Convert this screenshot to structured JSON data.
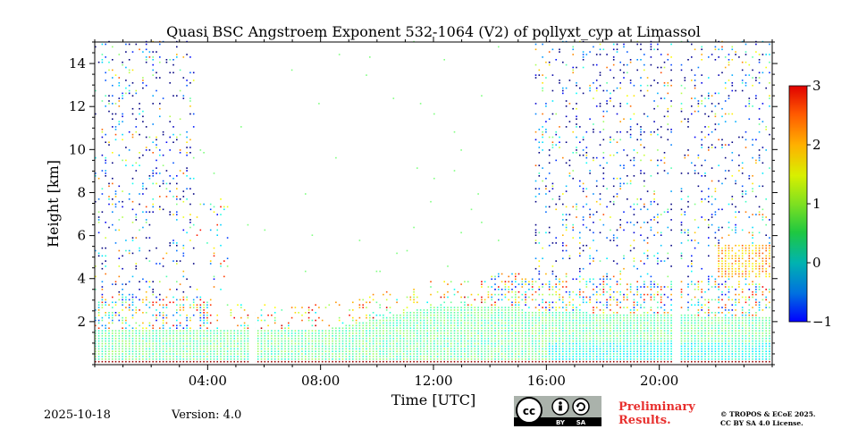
{
  "chart_data": {
    "type": "heatmap",
    "title": "Quasi BSC Angstroem Exponent 532-1064 (V2) of pollyxt_cyp at Limassol",
    "xlabel": "Time [UTC]",
    "ylabel": "Height [km]",
    "x_unit": "hours UTC",
    "xlim": [
      0,
      24
    ],
    "ylim": [
      0,
      15
    ],
    "x_ticks": [
      4,
      8,
      12,
      16,
      20
    ],
    "x_tick_labels": [
      "04:00",
      "08:00",
      "12:00",
      "16:00",
      "20:00"
    ],
    "y_ticks": [
      2,
      4,
      6,
      8,
      10,
      12,
      14
    ],
    "y_tick_labels": [
      "2",
      "4",
      "6",
      "8",
      "10",
      "12",
      "14"
    ],
    "colorbar": {
      "min": -1,
      "max": 3,
      "ticks": [
        -1,
        0,
        1,
        2,
        3
      ],
      "tick_labels": [
        "−1",
        "0",
        "1",
        "2",
        "3"
      ],
      "colormap": "jet"
    },
    "data_gaps_hours": [
      5.6,
      20.6
    ],
    "regions": [
      {
        "t0": 0,
        "t1": 24,
        "h0": 0.0,
        "h1": 1.5,
        "value": 1.0
      },
      {
        "t0": 10,
        "t1": 15,
        "h0": 1.5,
        "h1": 2.6,
        "value": 0.8
      },
      {
        "t0": 15,
        "t1": 22,
        "h0": 1.5,
        "h1": 2.2,
        "value": 0.9
      },
      {
        "t0": 22,
        "t1": 24,
        "h0": 4.0,
        "h1": 5.5,
        "value": 1.9
      }
    ]
  },
  "footer": {
    "date": "2025-10-18",
    "version": "Version: 4.0",
    "cc_labels": [
      "BY",
      "SA"
    ],
    "preliminary": [
      "Preliminary",
      "Results."
    ],
    "copyright": [
      "© TROPOS & ECoE 2025.",
      "CC BY SA 4.0 License."
    ]
  }
}
